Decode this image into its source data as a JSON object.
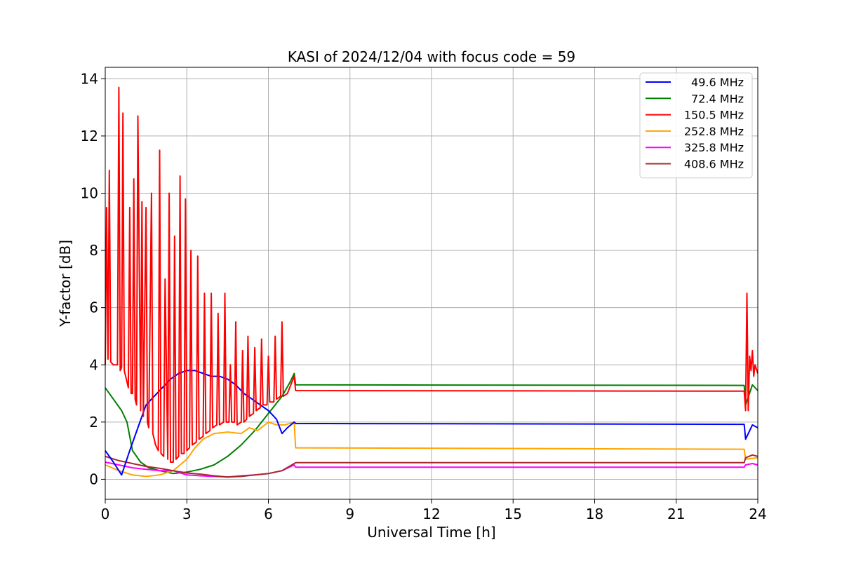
{
  "chart_data": {
    "type": "line",
    "title": "KASI of 2024/12/04 with focus code = 59",
    "xlabel": "Universal Time [h]",
    "ylabel": "Y-factor [dB]",
    "xlim": [
      0,
      24
    ],
    "ylim": [
      -0.7,
      14.4
    ],
    "xticks": [
      0,
      3,
      6,
      9,
      12,
      15,
      18,
      21,
      24
    ],
    "xtick_labels": [
      "0",
      "3",
      "6",
      "9",
      "12",
      "15",
      "18",
      "21",
      "24"
    ],
    "yticks": [
      0,
      2,
      4,
      6,
      8,
      10,
      12,
      14
    ],
    "ytick_labels": [
      "0",
      "2",
      "4",
      "6",
      "8",
      "10",
      "12",
      "14"
    ],
    "grid": true,
    "legend_position": "top-right",
    "series": [
      {
        "name": "49.6 MHz",
        "color": "#0000ff",
        "x": [
          0,
          0.3,
          0.6,
          0.9,
          1.2,
          1.5,
          1.8,
          2.1,
          2.4,
          2.7,
          3.0,
          3.3,
          3.6,
          3.9,
          4.2,
          4.5,
          4.8,
          5.1,
          5.4,
          5.7,
          6.0,
          6.3,
          6.5,
          6.7,
          6.95,
          7.0,
          23.5,
          23.55,
          23.8,
          24.0
        ],
        "y": [
          1.0,
          0.6,
          0.15,
          1.0,
          1.8,
          2.6,
          2.9,
          3.2,
          3.5,
          3.7,
          3.8,
          3.8,
          3.7,
          3.6,
          3.6,
          3.5,
          3.3,
          3.0,
          2.8,
          2.6,
          2.4,
          2.1,
          1.6,
          1.8,
          2.0,
          1.95,
          1.92,
          1.4,
          1.9,
          1.8
        ]
      },
      {
        "name": "72.4 MHz",
        "color": "#008000",
        "x": [
          0,
          0.3,
          0.6,
          0.8,
          1.0,
          1.3,
          1.6,
          2.0,
          2.5,
          3.0,
          3.5,
          4.0,
          4.5,
          5.0,
          5.5,
          6.0,
          6.5,
          6.8,
          6.95,
          7.0,
          23.5,
          23.55,
          23.8,
          24.0
        ],
        "y": [
          3.2,
          2.8,
          2.4,
          2.0,
          1.0,
          0.6,
          0.4,
          0.3,
          0.2,
          0.25,
          0.35,
          0.5,
          0.8,
          1.2,
          1.7,
          2.3,
          2.9,
          3.4,
          3.7,
          3.3,
          3.28,
          2.6,
          3.3,
          3.1
        ]
      },
      {
        "name": "150.5 MHz",
        "color": "#ff0000",
        "x": [
          0,
          0.05,
          0.1,
          0.15,
          0.2,
          0.3,
          0.45,
          0.5,
          0.55,
          0.6,
          0.65,
          0.7,
          0.75,
          0.8,
          0.85,
          0.9,
          0.95,
          1.0,
          1.05,
          1.1,
          1.15,
          1.2,
          1.3,
          1.35,
          1.4,
          1.5,
          1.55,
          1.6,
          1.7,
          1.75,
          1.8,
          1.85,
          1.95,
          2.0,
          2.05,
          2.15,
          2.2,
          2.3,
          2.35,
          2.4,
          2.5,
          2.55,
          2.6,
          2.7,
          2.75,
          2.8,
          2.9,
          2.95,
          3.0,
          3.1,
          3.15,
          3.2,
          3.35,
          3.4,
          3.45,
          3.6,
          3.65,
          3.7,
          3.85,
          3.9,
          3.95,
          4.1,
          4.15,
          4.2,
          4.35,
          4.4,
          4.45,
          4.55,
          4.6,
          4.65,
          4.75,
          4.8,
          4.85,
          5.0,
          5.05,
          5.1,
          5.2,
          5.25,
          5.3,
          5.45,
          5.5,
          5.55,
          5.7,
          5.75,
          5.8,
          5.95,
          6.0,
          6.05,
          6.2,
          6.25,
          6.3,
          6.45,
          6.5,
          6.55,
          6.7,
          6.95,
          7.0,
          23.5,
          23.55,
          23.6,
          23.65,
          23.7,
          23.75,
          23.8,
          23.85,
          23.9,
          24.0
        ],
        "y": [
          4.0,
          9.5,
          4.2,
          10.8,
          4.1,
          4.0,
          4.0,
          13.7,
          3.8,
          3.9,
          12.8,
          3.8,
          3.6,
          3.4,
          3.2,
          9.5,
          3.0,
          3.0,
          10.5,
          2.8,
          2.6,
          12.7,
          2.4,
          9.7,
          2.2,
          9.5,
          2.0,
          1.8,
          10.0,
          1.6,
          1.4,
          1.2,
          1.0,
          11.5,
          0.9,
          0.8,
          7.0,
          0.7,
          10.0,
          0.6,
          0.6,
          8.5,
          0.7,
          0.8,
          10.6,
          0.9,
          0.9,
          9.8,
          1.0,
          1.1,
          8.0,
          1.2,
          1.3,
          7.8,
          1.4,
          1.5,
          6.5,
          1.6,
          1.7,
          6.5,
          1.8,
          1.9,
          5.8,
          1.9,
          2.0,
          6.5,
          2.0,
          2.0,
          4.0,
          2.0,
          2.0,
          5.5,
          1.9,
          2.0,
          4.5,
          2.0,
          2.1,
          5.0,
          2.2,
          2.3,
          4.6,
          2.4,
          2.5,
          4.9,
          2.6,
          2.6,
          4.3,
          2.7,
          2.7,
          5.0,
          2.8,
          2.9,
          5.5,
          2.9,
          3.0,
          3.6,
          3.1,
          3.08,
          2.4,
          6.5,
          2.4,
          4.3,
          3.8,
          4.5,
          3.6,
          4.0,
          3.7
        ]
      },
      {
        "name": "252.8 MHz",
        "color": "#ffa500",
        "x": [
          0,
          0.5,
          1.0,
          1.5,
          2.0,
          2.5,
          3.0,
          3.3,
          3.6,
          4.0,
          4.5,
          5.0,
          5.3,
          5.6,
          6.0,
          6.3,
          6.6,
          6.95,
          7.0,
          23.5,
          23.55,
          24.0
        ],
        "y": [
          0.5,
          0.3,
          0.15,
          0.1,
          0.15,
          0.3,
          0.7,
          1.1,
          1.4,
          1.6,
          1.65,
          1.6,
          1.8,
          1.7,
          2.0,
          1.9,
          1.9,
          2.0,
          1.1,
          1.05,
          0.7,
          0.75
        ]
      },
      {
        "name": "325.8 MHz",
        "color": "#ff00ff",
        "x": [
          0,
          0.5,
          1.0,
          1.5,
          2.0,
          2.5,
          3.0,
          3.5,
          4.0,
          4.5,
          5.0,
          5.5,
          6.0,
          6.5,
          6.95,
          7.0,
          23.5,
          23.55,
          23.8,
          24.0
        ],
        "y": [
          0.6,
          0.5,
          0.4,
          0.35,
          0.3,
          0.3,
          0.15,
          0.12,
          0.1,
          0.08,
          0.12,
          0.15,
          0.2,
          0.3,
          0.5,
          0.42,
          0.42,
          0.5,
          0.55,
          0.5
        ]
      },
      {
        "name": "408.6 MHz",
        "color": "#a52a2a",
        "x": [
          0,
          0.5,
          1.0,
          1.5,
          2.0,
          2.5,
          3.0,
          3.5,
          4.0,
          4.5,
          5.0,
          5.5,
          6.0,
          6.5,
          6.95,
          7.0,
          23.5,
          23.55,
          23.8,
          24.0
        ],
        "y": [
          0.8,
          0.65,
          0.55,
          0.45,
          0.38,
          0.3,
          0.22,
          0.18,
          0.12,
          0.08,
          0.1,
          0.15,
          0.2,
          0.3,
          0.55,
          0.58,
          0.58,
          0.75,
          0.85,
          0.8
        ]
      }
    ]
  }
}
